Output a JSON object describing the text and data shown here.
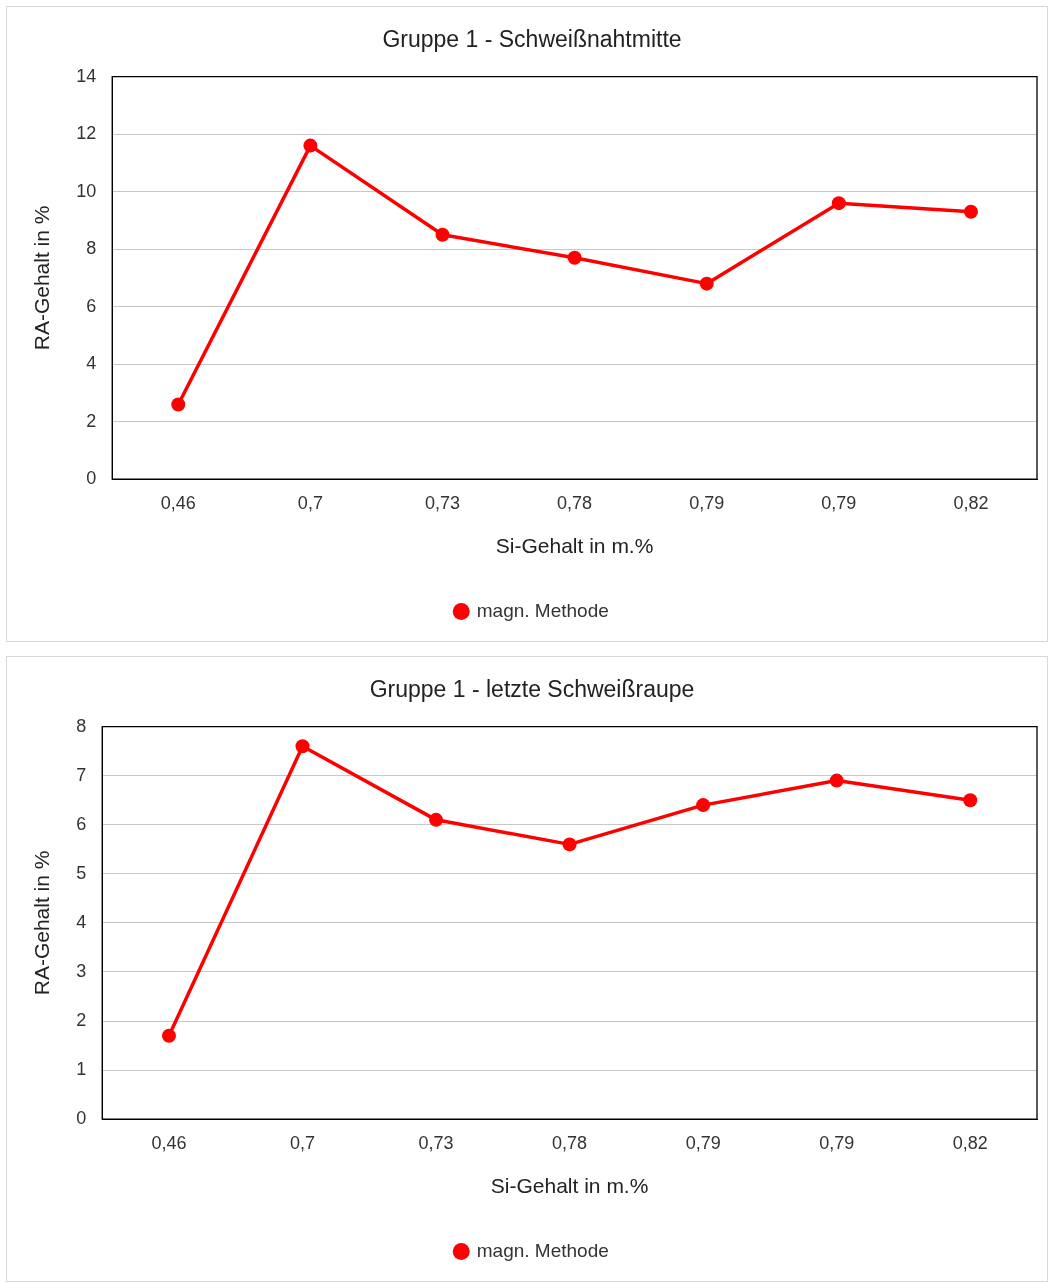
{
  "chart_data": [
    {
      "type": "line",
      "title": "Gruppe 1 - Schweißnahtmitte",
      "xlabel": "Si-Gehalt in m.%",
      "ylabel": "RA-Gehalt in %",
      "categories": [
        "0,46",
        "0,7",
        "0,73",
        "0,78",
        "0,79",
        "0,79",
        "0,82"
      ],
      "series": [
        {
          "name": "magn. Methode",
          "color": "#ff0000",
          "values": [
            2.6,
            11.6,
            8.5,
            7.7,
            6.8,
            9.6,
            9.3
          ]
        }
      ],
      "ylim": [
        0,
        14
      ],
      "yticks": [
        0,
        2,
        4,
        6,
        8,
        10,
        12,
        14
      ],
      "grid": "y",
      "legend": "bottom",
      "marker": "circle",
      "line_style": "solid"
    },
    {
      "type": "line",
      "title": "Gruppe 1 - letzte Schweißraupe",
      "xlabel": "Si-Gehalt in m.%",
      "ylabel": "RA-Gehalt in %",
      "categories": [
        "0,46",
        "0,7",
        "0,73",
        "0,78",
        "0,79",
        "0,79",
        "0,82"
      ],
      "series": [
        {
          "name": "magn. Methode",
          "color": "#ff0000",
          "values": [
            1.7,
            7.6,
            6.1,
            5.6,
            6.4,
            6.9,
            6.5
          ]
        }
      ],
      "ylim": [
        0,
        8
      ],
      "yticks": [
        0,
        1,
        2,
        3,
        4,
        5,
        6,
        7,
        8
      ],
      "grid": "y",
      "legend": "bottom",
      "marker": "circle",
      "line_style": "solid"
    }
  ]
}
